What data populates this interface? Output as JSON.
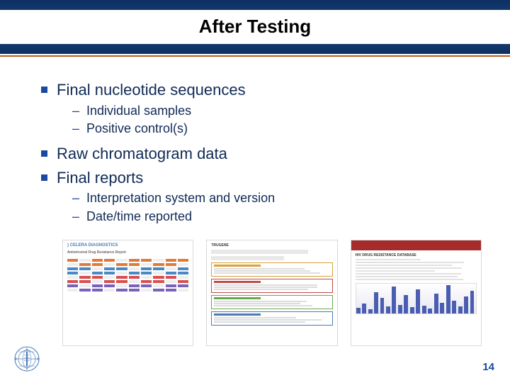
{
  "title": "After Testing",
  "bullets": [
    {
      "text": "Final nucleotide sequences",
      "sub": [
        "Individual samples",
        "Positive control(s)"
      ]
    },
    {
      "text": "Raw chromatogram data",
      "sub": []
    },
    {
      "text": "Final reports",
      "sub": [
        "Interpretation system and version",
        "Date/time reported"
      ]
    }
  ],
  "page_number": "14",
  "colors": {
    "bullet_square": "#1a4aa0",
    "text": "#102a56",
    "header_band": "#123868",
    "rule": "#b85c1e",
    "thumb3_header": "#a62c2c"
  },
  "thumbnails": [
    {
      "kind": "report-grid",
      "title": "Antiretroviral Drug Resistance Report",
      "row_colors": [
        "#e07a3a",
        "#e07a3a",
        "#4a8ac2",
        "#4a8ac2",
        "#d94f4f",
        "#d94f4f",
        "#7a61b8",
        "#7a61b8"
      ]
    },
    {
      "kind": "report-table",
      "band_colors": [
        "#d9a23a",
        "#c24a4a",
        "#6aa84f",
        "#4a7bb8"
      ]
    },
    {
      "kind": "database-chart",
      "header_color": "#a62c2c",
      "bars": [
        8,
        14,
        6,
        30,
        22,
        10,
        38,
        12,
        26,
        9,
        34,
        11,
        7,
        28,
        15,
        40,
        18,
        10,
        24,
        32
      ]
    }
  ]
}
